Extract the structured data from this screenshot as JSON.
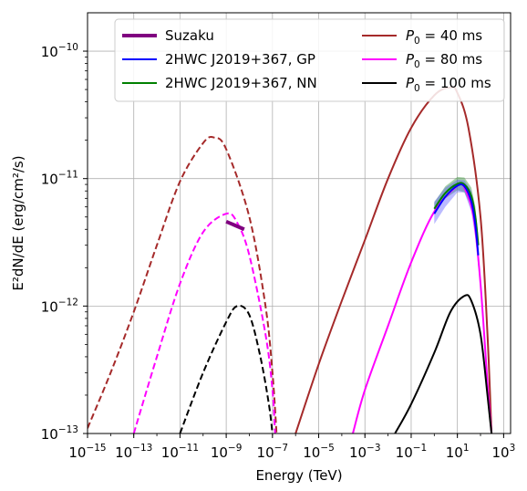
{
  "chart_data": {
    "type": "line",
    "xlabel": "Energy (TeV)",
    "ylabel": "E²dN/dE (erg/cm²/s)",
    "xscale": "log",
    "yscale": "log",
    "xlim": [
      1e-15,
      2000
    ],
    "ylim": [
      1e-13,
      2e-10
    ],
    "grid": true,
    "legend_position": "top",
    "x_ticks": [
      {
        "base": "10",
        "exp": "−15",
        "value": 1e-15
      },
      {
        "base": "10",
        "exp": "−13",
        "value": 1e-13
      },
      {
        "base": "10",
        "exp": "−11",
        "value": 1e-11
      },
      {
        "base": "10",
        "exp": "−9",
        "value": 1e-09
      },
      {
        "base": "10",
        "exp": "−7",
        "value": 1e-07
      },
      {
        "base": "10",
        "exp": "−5",
        "value": 1e-05
      },
      {
        "base": "10",
        "exp": "−3",
        "value": 0.001
      },
      {
        "base": "10",
        "exp": "−1",
        "value": 0.1
      },
      {
        "base": "10",
        "exp": "1",
        "value": 10
      },
      {
        "base": "10",
        "exp": "3",
        "value": 1000
      }
    ],
    "y_ticks": [
      {
        "base": "10",
        "exp": "−13",
        "value": 1e-13
      },
      {
        "base": "10",
        "exp": "−12",
        "value": 1e-12
      },
      {
        "base": "10",
        "exp": "−11",
        "value": 1e-11
      },
      {
        "base": "10",
        "exp": "−10",
        "value": 1e-10
      }
    ],
    "legend": {
      "left": [
        {
          "label": "Suzaku",
          "color": "#800080",
          "width": 4
        },
        {
          "label": "2HWC J2019+367, GP",
          "color": "#0000ff",
          "width": 2
        },
        {
          "label": "2HWC J2019+367, NN",
          "color": "#008000",
          "width": 2
        }
      ],
      "right": [
        {
          "label_main": "P",
          "label_sub": "0",
          "label_rest": " = 40 ms",
          "color": "#a52a2a",
          "width": 2
        },
        {
          "label_main": "P",
          "label_sub": "0",
          "label_rest": " = 80 ms",
          "color": "#ff00ff",
          "width": 2
        },
        {
          "label_main": "P",
          "label_sub": "0",
          "label_rest": " = 100 ms",
          "color": "#000000",
          "width": 2
        }
      ]
    },
    "series": [
      {
        "name": "P0 = 40 ms (synchrotron)",
        "color": "#a52a2a",
        "dash": true,
        "points": [
          [
            1e-15,
            1.1e-13
          ],
          [
            1e-14,
            3e-13
          ],
          [
            1e-13,
            9e-13
          ],
          [
            1e-12,
            3e-12
          ],
          [
            1e-11,
            9.5e-12
          ],
          [
            1e-10,
            1.9e-11
          ],
          [
            3e-10,
            2.1e-11
          ],
          [
            1e-09,
            1.7e-11
          ],
          [
            1e-08,
            5e-12
          ],
          [
            5e-08,
            1e-12
          ],
          [
            1e-07,
            3e-13
          ],
          [
            1.5e-07,
            1e-13
          ]
        ]
      },
      {
        "name": "P0 = 80 ms (synchrotron)",
        "color": "#ff00ff",
        "dash": true,
        "points": [
          [
            1e-13,
            1e-13
          ],
          [
            1e-12,
            4e-13
          ],
          [
            1e-11,
            1.5e-12
          ],
          [
            1e-10,
            3.8e-12
          ],
          [
            1e-09,
            5.3e-12
          ],
          [
            3e-09,
            4.5e-12
          ],
          [
            1e-08,
            2.5e-12
          ],
          [
            5e-08,
            6e-13
          ],
          [
            1e-07,
            2.2e-13
          ],
          [
            1.3e-07,
            1e-13
          ]
        ]
      },
      {
        "name": "P0 = 100 ms (synchrotron)",
        "color": "#000000",
        "dash": true,
        "points": [
          [
            1e-11,
            1e-13
          ],
          [
            1e-10,
            3e-13
          ],
          [
            1e-09,
            7.5e-13
          ],
          [
            3e-09,
            1e-12
          ],
          [
            1e-08,
            8.5e-13
          ],
          [
            3e-08,
            4e-13
          ],
          [
            7e-08,
            1.7e-13
          ],
          [
            1e-07,
            1e-13
          ]
        ]
      },
      {
        "name": "P0 = 40 ms (IC)",
        "color": "#a52a2a",
        "dash": false,
        "points": [
          [
            1e-06,
            1e-13
          ],
          [
            1e-05,
            3.5e-13
          ],
          [
            0.0001,
            1.1e-12
          ],
          [
            0.001,
            3.3e-12
          ],
          [
            0.01,
            1e-11
          ],
          [
            0.1,
            2.5e-11
          ],
          [
            1,
            4.5e-11
          ],
          [
            5,
            5.2e-11
          ],
          [
            10,
            4.7e-11
          ],
          [
            30,
            2.5e-11
          ],
          [
            100,
            5e-12
          ],
          [
            200,
            6e-13
          ],
          [
            300,
            1e-13
          ]
        ]
      },
      {
        "name": "P0 = 80 ms (IC)",
        "color": "#ff00ff",
        "dash": false,
        "points": [
          [
            0.0003,
            1e-13
          ],
          [
            0.001,
            2.2e-13
          ],
          [
            0.01,
            7e-13
          ],
          [
            0.1,
            2.2e-12
          ],
          [
            1,
            5.5e-12
          ],
          [
            10,
            8.8e-12
          ],
          [
            20,
            8.5e-12
          ],
          [
            50,
            5e-12
          ],
          [
            100,
            1.5e-12
          ],
          [
            200,
            2.5e-13
          ],
          [
            300,
            1e-13
          ]
        ]
      },
      {
        "name": "P0 = 100 ms (IC)",
        "color": "#000000",
        "dash": false,
        "points": [
          [
            0.02,
            1e-13
          ],
          [
            0.1,
            1.7e-13
          ],
          [
            1,
            4.3e-13
          ],
          [
            5,
            9e-13
          ],
          [
            20,
            1.2e-12
          ],
          [
            40,
            1.1e-12
          ],
          [
            100,
            6e-13
          ],
          [
            200,
            2e-13
          ],
          [
            300,
            1e-13
          ]
        ]
      },
      {
        "name": "2HWC J2019+367, NN",
        "color": "#008000",
        "dash": false,
        "width": 2,
        "band": {
          "color": "#3a9a3a",
          "opacity": 0.45,
          "upper": [
            [
              1,
              6.5e-12
            ],
            [
              3,
              8.7e-12
            ],
            [
              10,
              1.03e-11
            ],
            [
              20,
              1.02e-11
            ],
            [
              40,
              8.5e-12
            ],
            [
              60,
              6e-12
            ],
            [
              80,
              3.5e-12
            ]
          ],
          "lower": [
            [
              1,
              5.4e-12
            ],
            [
              3,
              7e-12
            ],
            [
              10,
              8.1e-12
            ],
            [
              20,
              7.8e-12
            ],
            [
              40,
              6e-12
            ],
            [
              60,
              4e-12
            ],
            [
              80,
              2.6e-12
            ]
          ]
        },
        "points": [
          [
            1,
            5.8e-12
          ],
          [
            3,
            7.7e-12
          ],
          [
            10,
            9.1e-12
          ],
          [
            20,
            9e-12
          ],
          [
            40,
            7.3e-12
          ],
          [
            60,
            5e-12
          ],
          [
            80,
            3e-12
          ]
        ]
      },
      {
        "name": "2HWC J2019+367, GP",
        "color": "#0000ff",
        "dash": false,
        "width": 2,
        "band": {
          "color": "#5555ff",
          "opacity": 0.4,
          "upper": [
            [
              1,
              6.6e-12
            ],
            [
              3,
              8.5e-12
            ],
            [
              10,
              9.8e-12
            ],
            [
              20,
              9.7e-12
            ],
            [
              40,
              8e-12
            ],
            [
              60,
              5.5e-12
            ],
            [
              80,
              3.3e-12
            ]
          ],
          "lower": [
            [
              1,
              4.4e-12
            ],
            [
              3,
              6e-12
            ],
            [
              10,
              7.8e-12
            ],
            [
              20,
              7.8e-12
            ],
            [
              40,
              5.5e-12
            ],
            [
              60,
              3.4e-12
            ],
            [
              80,
              2e-12
            ]
          ]
        },
        "points": [
          [
            1,
            5.3e-12
          ],
          [
            3,
            7.2e-12
          ],
          [
            10,
            8.8e-12
          ],
          [
            20,
            8.7e-12
          ],
          [
            40,
            6.6e-12
          ],
          [
            60,
            4.3e-12
          ],
          [
            80,
            2.5e-12
          ]
        ]
      },
      {
        "name": "Suzaku",
        "color": "#800080",
        "dash": false,
        "width": 4,
        "points": [
          [
            1e-09,
            4.6e-12
          ],
          [
            6e-09,
            4e-12
          ]
        ]
      }
    ]
  }
}
